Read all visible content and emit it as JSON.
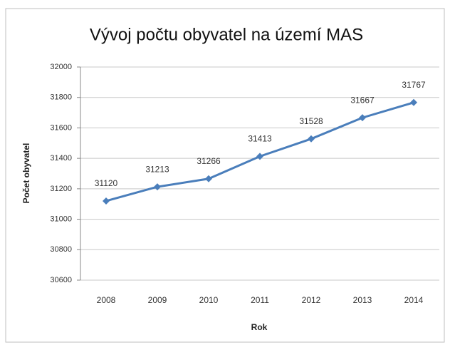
{
  "chart_data": {
    "type": "line",
    "title": "Vývoj počtu obyvatel na území MAS",
    "x_label": "Rok",
    "y_label": "Počet obyvatel",
    "categories": [
      "2008",
      "2009",
      "2010",
      "2011",
      "2012",
      "2013",
      "2014"
    ],
    "values": [
      31120,
      31213,
      31266,
      31413,
      31528,
      31667,
      31767
    ],
    "color": "#4a7ebb",
    "ylim": [
      30600,
      32000
    ],
    "yticks": [
      30600,
      30800,
      31000,
      31200,
      31400,
      31600,
      31800,
      32000
    ],
    "grid": true
  }
}
